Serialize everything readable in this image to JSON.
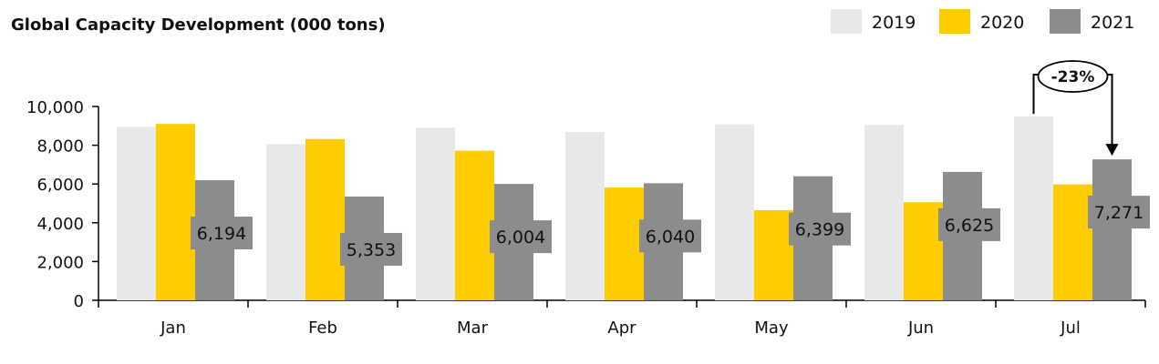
{
  "chart_data": {
    "type": "bar",
    "title": "Global Capacity Development (000 tons)",
    "categories": [
      "Jan",
      "Feb",
      "Mar",
      "Apr",
      "May",
      "Jun",
      "Jul"
    ],
    "series": [
      {
        "name": "2019",
        "color": "#e8e8e8",
        "values": [
          8950,
          8050,
          8900,
          8680,
          9080,
          9050,
          9480
        ]
      },
      {
        "name": "2020",
        "color": "#ffcc00",
        "values": [
          9100,
          8320,
          7720,
          5820,
          4650,
          5060,
          5980
        ]
      },
      {
        "name": "2021",
        "color": "#8c8c8c",
        "values": [
          6194,
          5353,
          6004,
          6040,
          6399,
          6625,
          7271
        ]
      }
    ],
    "data_labels": [
      "6,194",
      "5,353",
      "6,004",
      "6,040",
      "6,399",
      "6,625",
      "7,271"
    ],
    "ylim": [
      0,
      10000
    ],
    "yticks": [
      0,
      2000,
      4000,
      6000,
      8000,
      10000
    ],
    "ytick_labels": [
      "0",
      "2,000",
      "4,000",
      "6,000",
      "8,000",
      "10,000"
    ],
    "legend_position": "top-right",
    "grid": false,
    "annotation": {
      "text": "-23%",
      "category": "Jul"
    }
  }
}
